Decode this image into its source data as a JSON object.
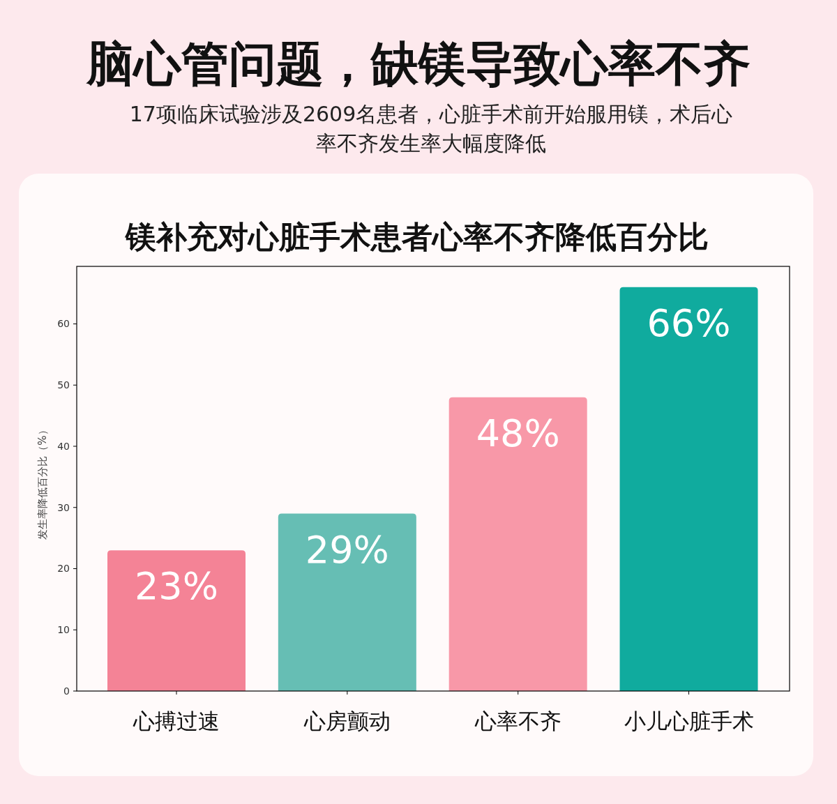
{
  "chart_data": {
    "type": "bar",
    "title": "脑心管问题，缺镁导致心率不齐",
    "subtitle": "17项临床试验涉及2609名患者，心脏手术前开始服用镁，术后心率不齐发生率大幅度降低",
    "annotations": [
      "镁补充对心脏手术患者心率不齐降低百分比"
    ],
    "ylabel": "发生率降低百分比（%）",
    "categories": [
      "心搏过速",
      "心房颤动",
      "心率不齐",
      "小儿心脏手术"
    ],
    "values": [
      23,
      29,
      48,
      66
    ],
    "colors": [
      "#f48396",
      "#66beb4",
      "#f898a8",
      "#10ab9e"
    ],
    "value_labels": [
      "23%",
      "29%",
      "48%",
      "66%"
    ],
    "ylim": [
      0,
      69.4
    ],
    "yticks": [
      0,
      10,
      20,
      30,
      40,
      50,
      60
    ],
    "grid": false
  }
}
